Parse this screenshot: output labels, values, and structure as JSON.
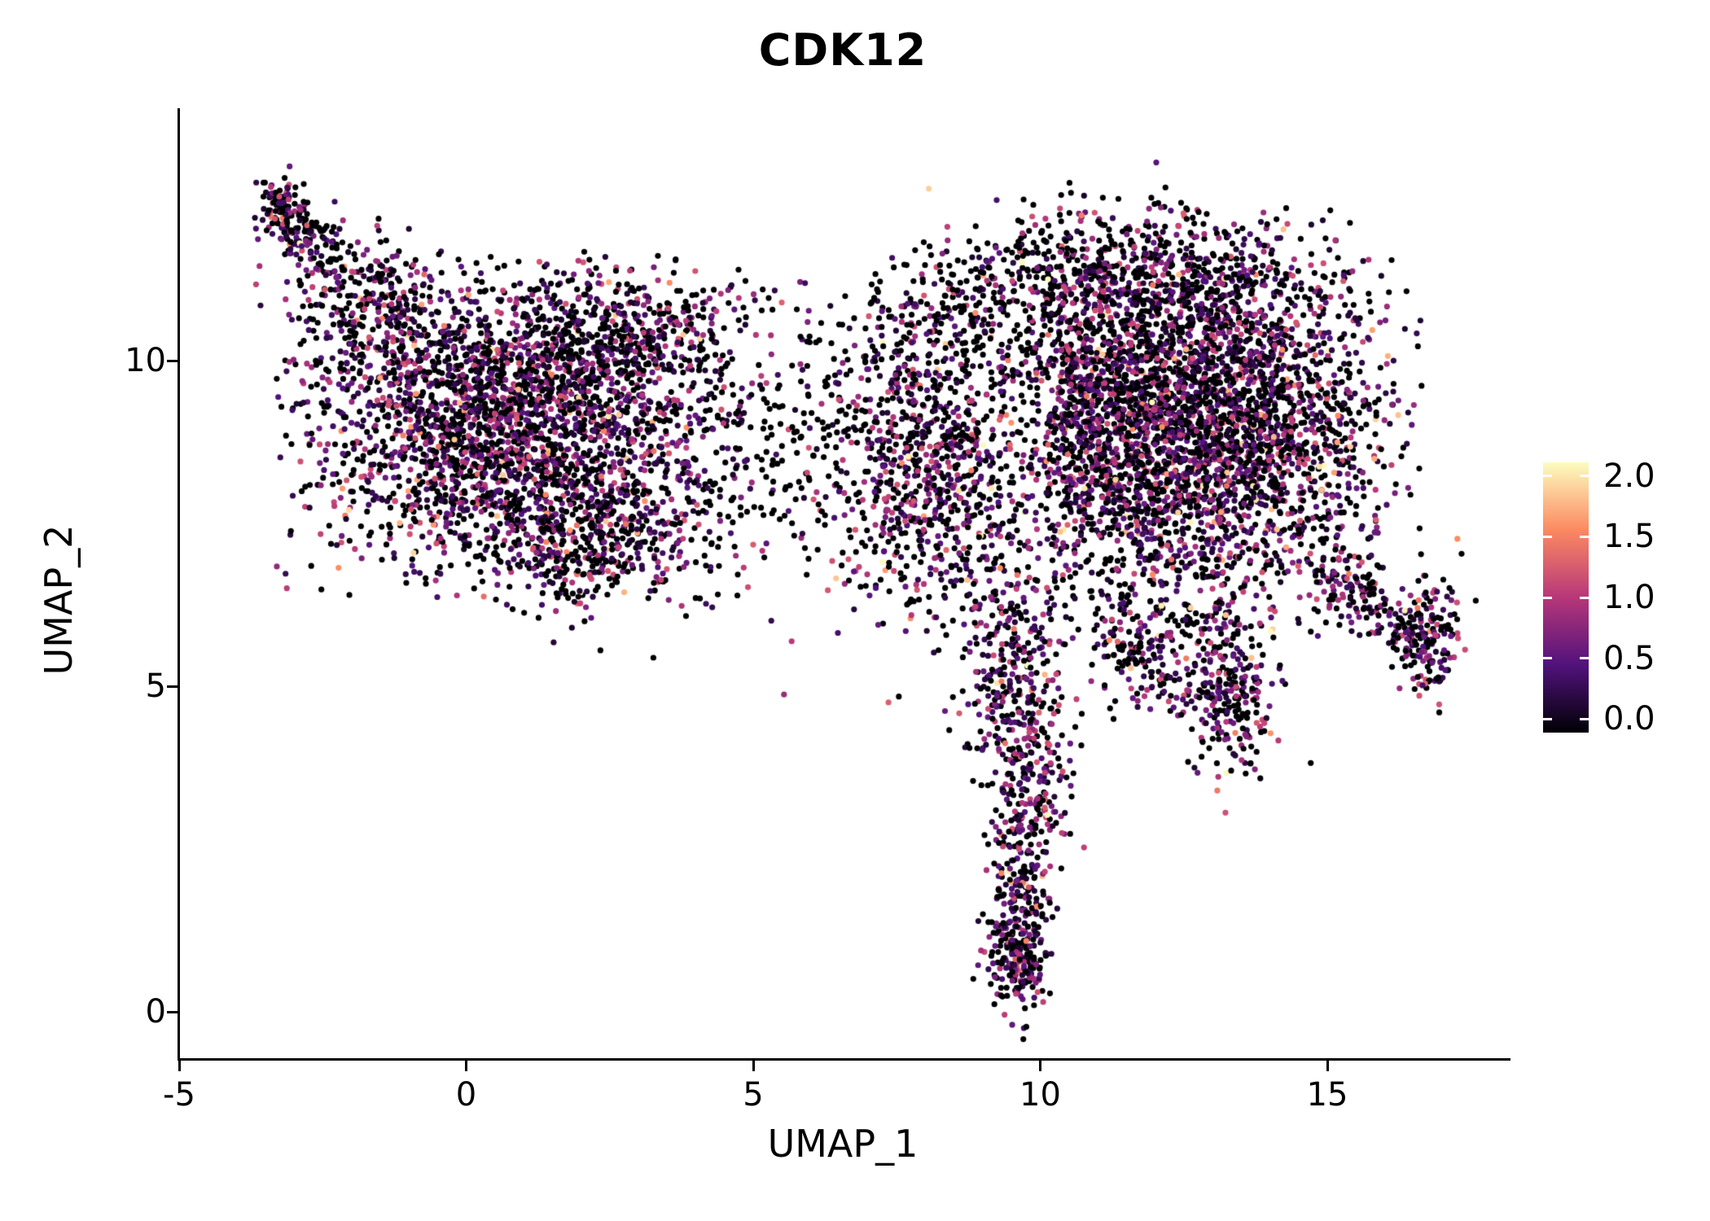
{
  "chart_data": {
    "type": "scatter",
    "title": "CDK12",
    "xlabel": "UMAP_1",
    "ylabel": "UMAP_2",
    "x_ticks": [
      "-5",
      "0",
      "5",
      "10",
      "15"
    ],
    "y_ticks": [
      "0",
      "5",
      "10"
    ],
    "xlim": [
      -5,
      18.1
    ],
    "ylim": [
      -0.75,
      13.9
    ],
    "grid": false,
    "legend": {
      "position": "right",
      "ticks": [
        "2.0",
        "1.5",
        "1.0",
        "0.5",
        "0.0"
      ],
      "vmin": 0.0,
      "vmax": 2.0
    },
    "colormap": {
      "name": "magma",
      "stops": [
        {
          "t": 0.0,
          "color": "#000004"
        },
        {
          "t": 0.25,
          "color": "#51127c"
        },
        {
          "t": 0.5,
          "color": "#b73779"
        },
        {
          "t": 0.75,
          "color": "#fc8961"
        },
        {
          "t": 1.0,
          "color": "#fcfdbf"
        }
      ]
    },
    "point_radius_px": 3.6,
    "seed": 1337,
    "expression_profiles": {
      "default": {
        "p_zero": 0.45,
        "p_high": 0.06,
        "power": 1.4
      },
      "darkish": {
        "p_zero": 0.6,
        "p_high": 0.04,
        "power": 1.5
      },
      "dark": {
        "p_zero": 0.78,
        "p_high": 0.02,
        "power": 1.6
      }
    },
    "clusters": [
      {
        "name": "left-tip-trail",
        "type": "line",
        "n": 90,
        "x1": -3.4,
        "y1": 12.6,
        "x2": -2.6,
        "y2": 11.6,
        "jitter": 0.18
      },
      {
        "name": "left-tip-blob",
        "type": "gauss",
        "n": 60,
        "cx": -3.2,
        "cy": 12.35,
        "sx": 0.16,
        "sy": 0.26
      },
      {
        "name": "left-upper-arm",
        "type": "line",
        "n": 300,
        "x1": -2.9,
        "y1": 11.7,
        "x2": -0.6,
        "y2": 10.4,
        "jitter": 0.42
      },
      {
        "name": "left-main",
        "type": "gauss",
        "n": 2700,
        "cx": 0.9,
        "cy": 9.1,
        "sx": 1.85,
        "sy": 1.1,
        "clamp": [
          -3.3,
          4.9,
          6.35,
          11.7
        ]
      },
      {
        "name": "left-upper-ridge",
        "type": "gauss",
        "n": 320,
        "cx": 2.9,
        "cy": 10.4,
        "sx": 1.05,
        "sy": 0.5
      },
      {
        "name": "left-lower-lobe",
        "type": "gauss",
        "n": 420,
        "cx": 2.1,
        "cy": 7.15,
        "sx": 1.1,
        "sy": 0.5
      },
      {
        "name": "bridge-sparse",
        "type": "gauss",
        "n": 240,
        "cx": 5.9,
        "cy": 8.7,
        "sx": 1.15,
        "sy": 1.05,
        "expr": "dark"
      },
      {
        "name": "mid-cluster",
        "type": "gauss",
        "n": 950,
        "cx": 8.25,
        "cy": 8.4,
        "sx": 1.0,
        "sy": 1.25
      },
      {
        "name": "top-arc",
        "type": "line",
        "n": 280,
        "x1": 7.4,
        "y1": 10.3,
        "x2": 10.4,
        "y2": 11.6,
        "jitter": 0.5,
        "expr": "dark"
      },
      {
        "name": "right-main",
        "type": "gauss",
        "n": 3400,
        "cx": 12.7,
        "cy": 9.0,
        "sx": 1.6,
        "sy": 1.35,
        "clamp": [
          10.1,
          16.7,
          5.7,
          12.4
        ]
      },
      {
        "name": "right-top-edge",
        "type": "gauss",
        "n": 450,
        "cx": 12.2,
        "cy": 11.25,
        "sx": 1.4,
        "sy": 0.55,
        "expr": "darkish"
      },
      {
        "name": "neck",
        "type": "gauss",
        "n": 300,
        "cx": 10.6,
        "cy": 9.6,
        "sx": 0.55,
        "sy": 1.1
      },
      {
        "name": "right-tail-line",
        "type": "line",
        "n": 170,
        "x1": 14.9,
        "y1": 6.9,
        "x2": 16.5,
        "y2": 5.7,
        "jitter": 0.28
      },
      {
        "name": "right-tail-blob",
        "type": "gauss",
        "n": 150,
        "cx": 16.8,
        "cy": 5.8,
        "sx": 0.3,
        "sy": 0.5
      },
      {
        "name": "hang-mid",
        "type": "gauss",
        "n": 190,
        "cx": 11.9,
        "cy": 5.6,
        "sx": 0.5,
        "sy": 0.5
      },
      {
        "name": "hang-right",
        "type": "gauss",
        "n": 270,
        "cx": 13.3,
        "cy": 5.0,
        "sx": 0.38,
        "sy": 0.72
      },
      {
        "name": "spike-upper",
        "type": "gauss",
        "n": 300,
        "cx": 9.6,
        "cy": 5.2,
        "sx": 0.5,
        "sy": 0.85
      },
      {
        "name": "spike-mid",
        "type": "gauss",
        "n": 190,
        "cx": 9.8,
        "cy": 3.4,
        "sx": 0.38,
        "sy": 0.65
      },
      {
        "name": "spike-lower",
        "type": "gauss",
        "n": 120,
        "cx": 9.7,
        "cy": 2.0,
        "sx": 0.28,
        "sy": 0.5
      },
      {
        "name": "spike-tip",
        "type": "gauss",
        "n": 210,
        "cx": 9.6,
        "cy": 0.85,
        "sx": 0.28,
        "sy": 0.38
      }
    ]
  }
}
